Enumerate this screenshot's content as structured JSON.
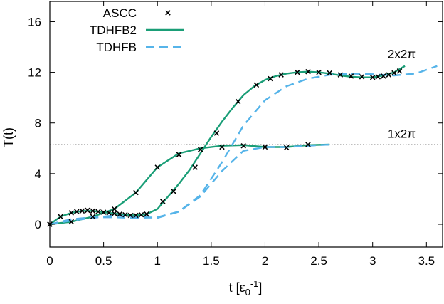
{
  "chart_data": {
    "type": "line",
    "xlabel": "t [ε",
    "xlabel_sub": "0",
    "xlabel_sup": "-1",
    "xlabel_close": "]",
    "ylabel": "T(t)",
    "xlim": [
      0,
      3.65
    ],
    "ylim": [
      -1.8,
      17.6
    ],
    "xticks": [
      0,
      0.5,
      1,
      1.5,
      2,
      2.5,
      3,
      3.5
    ],
    "xtick_labels": [
      "0",
      "0.5",
      "1",
      "1.5",
      "2",
      "2.5",
      "3",
      "3.5"
    ],
    "yticks": [
      0,
      4,
      8,
      12,
      16
    ],
    "ytick_labels": [
      "0",
      "4",
      "8",
      "12",
      "16"
    ],
    "grid": false,
    "legend_position": "top-left",
    "annotations": [
      {
        "text": "2x2π",
        "y": 12.566
      },
      {
        "text": "1x2π",
        "y": 6.283
      }
    ],
    "reference_lines": [
      12.566,
      6.283
    ],
    "series": [
      {
        "name": "ASCC",
        "style": "markers",
        "marker": "x",
        "color": "#000000",
        "x": [
          0,
          0.2,
          0.4,
          0.6,
          0.8,
          1.0,
          1.2,
          1.4,
          1.6,
          1.8,
          2.0,
          2.2,
          2.4
        ],
        "y": [
          0,
          0.2,
          0.6,
          1.2,
          2.5,
          4.5,
          5.5,
          5.9,
          6.1,
          6.2,
          6.1,
          6.05,
          6.3
        ]
      },
      {
        "name": "TDHFB2",
        "style": "solid",
        "color": "#1a9e77",
        "x": [
          0,
          0.2,
          0.4,
          0.6,
          0.8,
          1.0,
          1.2,
          1.4,
          1.6,
          1.8,
          2.0,
          2.2,
          2.4,
          2.6
        ],
        "y": [
          0,
          0.2,
          0.6,
          1.2,
          2.5,
          4.5,
          5.6,
          6.0,
          6.2,
          6.25,
          6.1,
          6.1,
          6.25,
          6.3
        ]
      },
      {
        "name": "TDHFB",
        "style": "dashed",
        "color": "#56b4e9",
        "x": [
          0,
          0.2,
          0.4,
          0.6,
          0.8,
          1.0,
          1.2,
          1.4,
          1.6,
          1.8,
          2.0,
          2.2,
          2.4,
          2.6
        ],
        "y": [
          0,
          0.3,
          0.5,
          0.7,
          0.6,
          0.5,
          1.0,
          2.2,
          4.2,
          5.8,
          6.1,
          6.1,
          6.2,
          6.3
        ]
      },
      {
        "name": "",
        "style": "markers",
        "marker": "x",
        "color": "#000000",
        "x": [
          0,
          0.1,
          0.2,
          0.25,
          0.3,
          0.35,
          0.4,
          0.45,
          0.5,
          0.55,
          0.6,
          0.65,
          0.7,
          0.75,
          0.8,
          0.85,
          0.9,
          1.05,
          1.15,
          1.35,
          1.55,
          1.75,
          1.92,
          2.05,
          2.15,
          2.3,
          2.4,
          2.5,
          2.6,
          2.7,
          2.8,
          2.9,
          3.0,
          3.05,
          3.1,
          3.15,
          3.2,
          3.25
        ],
        "y": [
          0,
          0.6,
          0.9,
          1.0,
          1.05,
          1.1,
          1.05,
          1.0,
          0.95,
          0.9,
          0.85,
          0.8,
          0.75,
          0.7,
          0.7,
          0.75,
          0.8,
          1.8,
          2.6,
          4.5,
          7.2,
          9.7,
          11.0,
          11.5,
          11.8,
          12.0,
          12.05,
          12.0,
          11.95,
          11.8,
          11.7,
          11.65,
          11.6,
          11.65,
          11.7,
          11.8,
          11.95,
          12.1
        ]
      },
      {
        "name": "",
        "style": "solid",
        "color": "#1a9e77",
        "x": [
          0,
          0.1,
          0.2,
          0.3,
          0.4,
          0.5,
          0.6,
          0.7,
          0.8,
          0.9,
          1.0,
          1.1,
          1.2,
          1.3,
          1.4,
          1.5,
          1.6,
          1.7,
          1.8,
          1.9,
          2.0,
          2.1,
          2.2,
          2.3,
          2.4,
          2.5,
          2.6,
          2.7,
          2.8,
          2.9,
          3.0,
          3.1,
          3.2,
          3.3
        ],
        "y": [
          0,
          0.6,
          0.9,
          1.05,
          1.05,
          0.95,
          0.85,
          0.75,
          0.7,
          0.8,
          1.2,
          2.2,
          3.2,
          4.3,
          5.6,
          6.9,
          8.1,
          9.2,
          10.2,
          10.9,
          11.4,
          11.7,
          11.9,
          12.0,
          12.05,
          12.0,
          11.9,
          11.75,
          11.65,
          11.6,
          11.6,
          11.75,
          12.0,
          12.5
        ]
      },
      {
        "name": "",
        "style": "dashed",
        "color": "#56b4e9",
        "x": [
          0,
          0.2,
          0.4,
          0.6,
          0.8,
          1.0,
          1.2,
          1.4,
          1.6,
          1.8,
          2.0,
          2.2,
          2.4,
          2.6,
          2.8,
          3.0,
          3.2,
          3.4,
          3.6
        ],
        "y": [
          0,
          0.4,
          0.55,
          0.55,
          0.5,
          0.55,
          1.0,
          2.3,
          4.9,
          7.8,
          9.8,
          10.9,
          11.5,
          11.8,
          11.9,
          11.85,
          11.75,
          11.9,
          12.5
        ]
      }
    ]
  }
}
